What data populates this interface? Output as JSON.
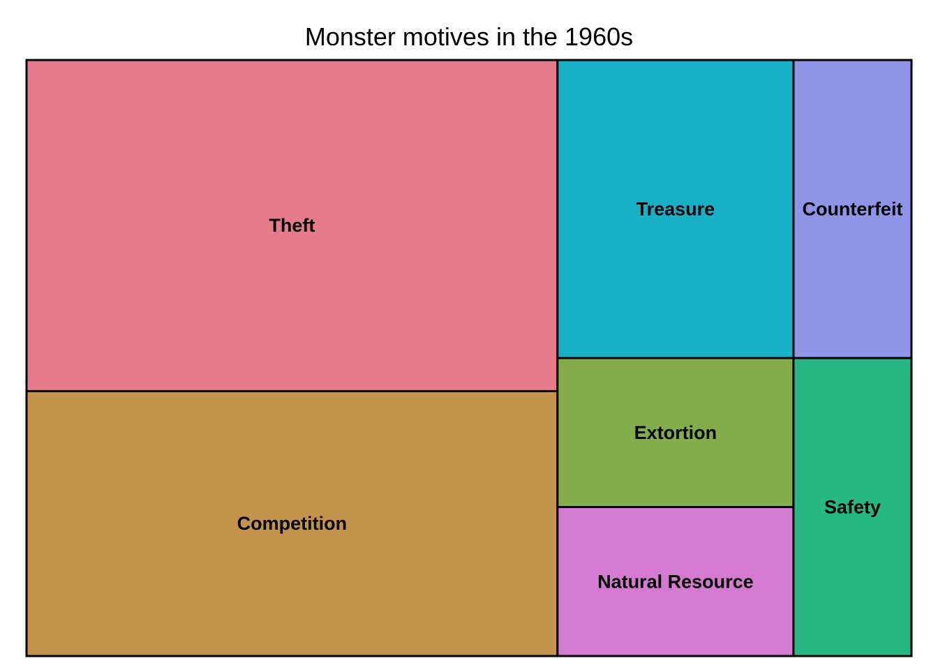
{
  "chart_data": {
    "type": "treemap",
    "title": "Monster motives in the 1960s",
    "legend": "none",
    "grid": false,
    "tiles": [
      {
        "label": "Theft",
        "value": 9,
        "color": "#E67B8B"
      },
      {
        "label": "Competition",
        "value": 7.2,
        "color": "#C4944C"
      },
      {
        "label": "Treasure",
        "value": 3.6,
        "color": "#17B0C6"
      },
      {
        "label": "Extortion",
        "value": 1.8,
        "color": "#83AD4B"
      },
      {
        "label": "Natural Resource",
        "value": 1.8,
        "color": "#D57AD1"
      },
      {
        "label": "Counterfeit",
        "value": 1.8,
        "color": "#8E95E6"
      },
      {
        "label": "Safety",
        "value": 1.8,
        "color": "#27B785"
      }
    ]
  }
}
